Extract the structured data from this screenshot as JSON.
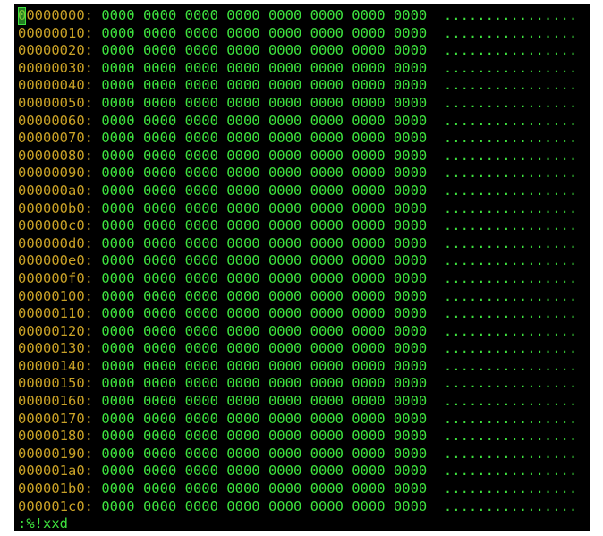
{
  "terminal": {
    "rows": [
      {
        "offset": "00000000:",
        "hex": "0000 0000 0000 0000 0000 0000 0000 0000",
        "ascii": "................"
      },
      {
        "offset": "00000010:",
        "hex": "0000 0000 0000 0000 0000 0000 0000 0000",
        "ascii": "................"
      },
      {
        "offset": "00000020:",
        "hex": "0000 0000 0000 0000 0000 0000 0000 0000",
        "ascii": "................"
      },
      {
        "offset": "00000030:",
        "hex": "0000 0000 0000 0000 0000 0000 0000 0000",
        "ascii": "................"
      },
      {
        "offset": "00000040:",
        "hex": "0000 0000 0000 0000 0000 0000 0000 0000",
        "ascii": "................"
      },
      {
        "offset": "00000050:",
        "hex": "0000 0000 0000 0000 0000 0000 0000 0000",
        "ascii": "................"
      },
      {
        "offset": "00000060:",
        "hex": "0000 0000 0000 0000 0000 0000 0000 0000",
        "ascii": "................"
      },
      {
        "offset": "00000070:",
        "hex": "0000 0000 0000 0000 0000 0000 0000 0000",
        "ascii": "................"
      },
      {
        "offset": "00000080:",
        "hex": "0000 0000 0000 0000 0000 0000 0000 0000",
        "ascii": "................"
      },
      {
        "offset": "00000090:",
        "hex": "0000 0000 0000 0000 0000 0000 0000 0000",
        "ascii": "................"
      },
      {
        "offset": "000000a0:",
        "hex": "0000 0000 0000 0000 0000 0000 0000 0000",
        "ascii": "................"
      },
      {
        "offset": "000000b0:",
        "hex": "0000 0000 0000 0000 0000 0000 0000 0000",
        "ascii": "................"
      },
      {
        "offset": "000000c0:",
        "hex": "0000 0000 0000 0000 0000 0000 0000 0000",
        "ascii": "................"
      },
      {
        "offset": "000000d0:",
        "hex": "0000 0000 0000 0000 0000 0000 0000 0000",
        "ascii": "................"
      },
      {
        "offset": "000000e0:",
        "hex": "0000 0000 0000 0000 0000 0000 0000 0000",
        "ascii": "................"
      },
      {
        "offset": "000000f0:",
        "hex": "0000 0000 0000 0000 0000 0000 0000 0000",
        "ascii": "................"
      },
      {
        "offset": "00000100:",
        "hex": "0000 0000 0000 0000 0000 0000 0000 0000",
        "ascii": "................"
      },
      {
        "offset": "00000110:",
        "hex": "0000 0000 0000 0000 0000 0000 0000 0000",
        "ascii": "................"
      },
      {
        "offset": "00000120:",
        "hex": "0000 0000 0000 0000 0000 0000 0000 0000",
        "ascii": "................"
      },
      {
        "offset": "00000130:",
        "hex": "0000 0000 0000 0000 0000 0000 0000 0000",
        "ascii": "................"
      },
      {
        "offset": "00000140:",
        "hex": "0000 0000 0000 0000 0000 0000 0000 0000",
        "ascii": "................"
      },
      {
        "offset": "00000150:",
        "hex": "0000 0000 0000 0000 0000 0000 0000 0000",
        "ascii": "................"
      },
      {
        "offset": "00000160:",
        "hex": "0000 0000 0000 0000 0000 0000 0000 0000",
        "ascii": "................"
      },
      {
        "offset": "00000170:",
        "hex": "0000 0000 0000 0000 0000 0000 0000 0000",
        "ascii": "................"
      },
      {
        "offset": "00000180:",
        "hex": "0000 0000 0000 0000 0000 0000 0000 0000",
        "ascii": "................"
      },
      {
        "offset": "00000190:",
        "hex": "0000 0000 0000 0000 0000 0000 0000 0000",
        "ascii": "................"
      },
      {
        "offset": "000001a0:",
        "hex": "0000 0000 0000 0000 0000 0000 0000 0000",
        "ascii": "................"
      },
      {
        "offset": "000001b0:",
        "hex": "0000 0000 0000 0000 0000 0000 0000 0000",
        "ascii": "................"
      },
      {
        "offset": "000001c0:",
        "hex": "0000 0000 0000 0000 0000 0000 0000 0000",
        "ascii": "................"
      }
    ],
    "command": ":%!xxd"
  }
}
